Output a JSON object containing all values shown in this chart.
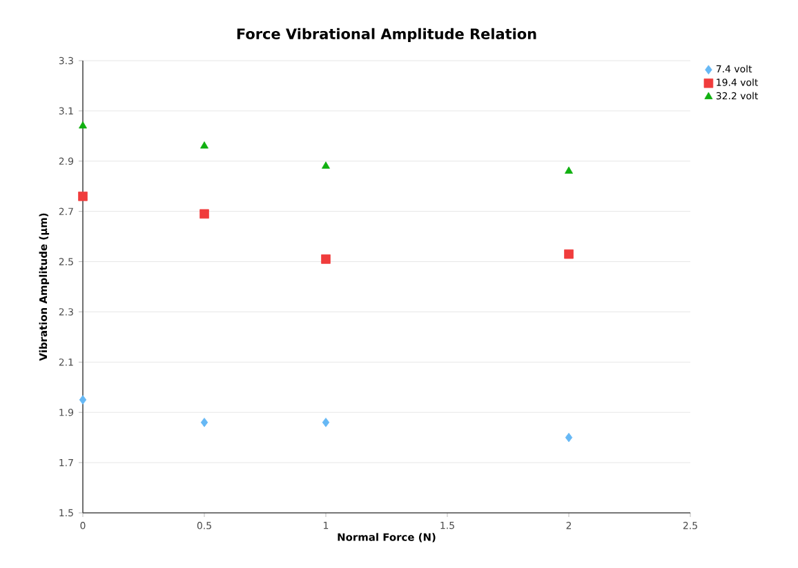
{
  "chart_data": {
    "type": "scatter",
    "title": "Force Vibrational Amplitude Relation",
    "xlabel": "Normal Force (N)",
    "ylabel": "Vibration Amplitude (µm)",
    "xlim": [
      0,
      2.5
    ],
    "xticks": [
      0,
      0.5,
      1,
      1.5,
      2,
      2.5
    ],
    "ylim": [
      1.5,
      3.3
    ],
    "yticks": [
      1.5,
      1.7,
      1.9,
      2.1,
      2.3,
      2.5,
      2.7,
      2.9,
      3.1,
      3.3
    ],
    "grid": "y",
    "legend": "top right",
    "x": [
      0,
      0.5,
      1,
      2
    ],
    "series": [
      {
        "name": "7.4 volt",
        "color": "#66b8f5",
        "marker": "diamond",
        "values": [
          1.95,
          1.86,
          1.86,
          1.8
        ]
      },
      {
        "name": "19.4 volt",
        "color": "#f03c3c",
        "marker": "square",
        "values": [
          2.76,
          2.69,
          2.51,
          2.53
        ]
      },
      {
        "name": "32.2 volt",
        "color": "#10b010",
        "marker": "triangle",
        "values": [
          3.04,
          2.96,
          2.88,
          2.86
        ]
      }
    ]
  }
}
